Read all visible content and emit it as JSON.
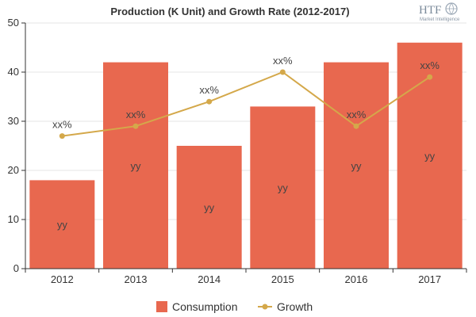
{
  "chart_data": {
    "type": "bar",
    "title": "Production (K Unit) and Growth Rate (2012-2017)",
    "categories": [
      "2012",
      "2013",
      "2014",
      "2015",
      "2016",
      "2017"
    ],
    "ylim": [
      0,
      50
    ],
    "yticks": [
      "0",
      "10",
      "20",
      "30",
      "40",
      "50"
    ],
    "grid": true,
    "legend_position": "bottom",
    "series": [
      {
        "name": "Consumption",
        "type": "bar",
        "color": "#e8684f",
        "values": [
          18,
          42,
          25,
          33,
          42,
          46
        ],
        "labels": [
          "yy",
          "yy",
          "yy",
          "yy",
          "yy",
          "yy"
        ]
      },
      {
        "name": "Growth",
        "type": "line",
        "color": "#d4a84a",
        "values": [
          27,
          29,
          34,
          40,
          29,
          39
        ],
        "labels": [
          "xx%",
          "xx%",
          "xx%",
          "xx%",
          "xx%",
          "xx%"
        ]
      }
    ]
  },
  "logo": {
    "text": "HTF",
    "subtext": "Market Intelligence"
  }
}
